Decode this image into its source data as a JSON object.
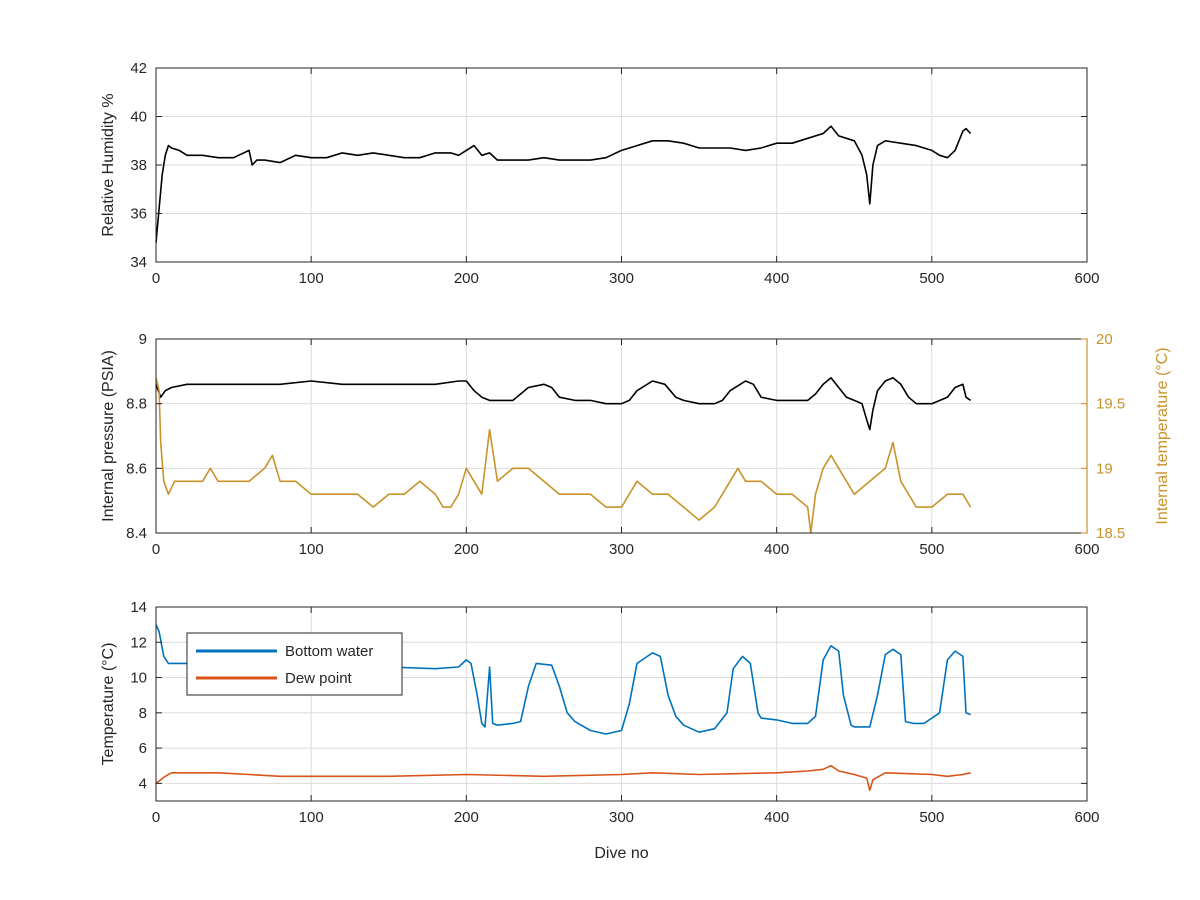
{
  "chart_data": [
    {
      "type": "line",
      "xlabel": "",
      "ylabel": "Relative Humidity %",
      "xlim": [
        0,
        600
      ],
      "ylim": [
        34,
        42
      ],
      "xticks": [
        0,
        100,
        200,
        300,
        400,
        500,
        600
      ],
      "yticks": [
        34,
        36,
        38,
        40,
        42
      ],
      "grid": true,
      "series": [
        {
          "color": "#000000",
          "x": [
            0,
            2,
            4,
            6,
            8,
            10,
            15,
            20,
            30,
            40,
            50,
            60,
            62,
            65,
            70,
            80,
            90,
            100,
            110,
            120,
            130,
            140,
            150,
            160,
            170,
            180,
            190,
            195,
            200,
            205,
            210,
            215,
            220,
            230,
            240,
            250,
            260,
            270,
            280,
            290,
            300,
            310,
            320,
            330,
            340,
            350,
            360,
            370,
            380,
            390,
            400,
            410,
            420,
            430,
            435,
            440,
            450,
            455,
            458,
            460,
            462,
            465,
            470,
            480,
            490,
            500,
            505,
            510,
            515,
            520,
            522,
            525
          ],
          "y": [
            34.8,
            36.2,
            37.6,
            38.4,
            38.8,
            38.7,
            38.6,
            38.4,
            38.4,
            38.3,
            38.3,
            38.6,
            38.0,
            38.2,
            38.2,
            38.1,
            38.4,
            38.3,
            38.3,
            38.5,
            38.4,
            38.5,
            38.4,
            38.3,
            38.3,
            38.5,
            38.5,
            38.4,
            38.6,
            38.8,
            38.4,
            38.5,
            38.2,
            38.2,
            38.2,
            38.3,
            38.2,
            38.2,
            38.2,
            38.3,
            38.6,
            38.8,
            39.0,
            39.0,
            38.9,
            38.7,
            38.7,
            38.7,
            38.6,
            38.7,
            38.9,
            38.9,
            39.1,
            39.3,
            39.6,
            39.2,
            39.0,
            38.4,
            37.6,
            36.4,
            38.0,
            38.8,
            39.0,
            38.9,
            38.8,
            38.6,
            38.4,
            38.3,
            38.6,
            39.4,
            39.5,
            39.3
          ]
        }
      ]
    },
    {
      "type": "line",
      "xlabel": "",
      "ylabel": "Internal pressure (PSIA)",
      "y2label": "Internal temperature (°C)",
      "xlim": [
        0,
        600
      ],
      "ylim": [
        8.4,
        9
      ],
      "y2lim": [
        18.5,
        20
      ],
      "xticks": [
        0,
        100,
        200,
        300,
        400,
        500,
        600
      ],
      "yticks": [
        8.4,
        8.6,
        8.8,
        9
      ],
      "y2ticks": [
        18.5,
        19,
        19.5,
        20
      ],
      "y2color": "#c9932a",
      "grid": true,
      "series": [
        {
          "axis": "left",
          "color": "#000000",
          "x": [
            0,
            3,
            6,
            10,
            20,
            40,
            60,
            80,
            100,
            120,
            140,
            160,
            180,
            195,
            200,
            205,
            210,
            215,
            220,
            230,
            235,
            240,
            250,
            255,
            260,
            270,
            280,
            290,
            300,
            305,
            310,
            320,
            328,
            335,
            340,
            350,
            360,
            365,
            370,
            380,
            385,
            390,
            400,
            410,
            420,
            425,
            430,
            435,
            440,
            445,
            450,
            455,
            458,
            460,
            462,
            465,
            470,
            475,
            480,
            485,
            490,
            495,
            500,
            510,
            515,
            520,
            522,
            525
          ],
          "y": [
            8.86,
            8.82,
            8.84,
            8.85,
            8.86,
            8.86,
            8.86,
            8.86,
            8.87,
            8.86,
            8.86,
            8.86,
            8.86,
            8.87,
            8.87,
            8.84,
            8.82,
            8.81,
            8.81,
            8.81,
            8.83,
            8.85,
            8.86,
            8.85,
            8.82,
            8.81,
            8.81,
            8.8,
            8.8,
            8.81,
            8.84,
            8.87,
            8.86,
            8.82,
            8.81,
            8.8,
            8.8,
            8.81,
            8.84,
            8.87,
            8.86,
            8.82,
            8.81,
            8.81,
            8.81,
            8.83,
            8.86,
            8.88,
            8.85,
            8.82,
            8.81,
            8.8,
            8.75,
            8.72,
            8.78,
            8.84,
            8.87,
            8.88,
            8.86,
            8.82,
            8.8,
            8.8,
            8.8,
            8.82,
            8.85,
            8.86,
            8.82,
            8.81
          ]
        },
        {
          "axis": "right",
          "color": "#c9932a",
          "x": [
            0,
            2,
            3,
            5,
            8,
            12,
            20,
            30,
            35,
            40,
            50,
            60,
            70,
            75,
            80,
            90,
            100,
            110,
            120,
            130,
            140,
            150,
            160,
            170,
            180,
            185,
            190,
            195,
            200,
            205,
            210,
            215,
            220,
            230,
            240,
            250,
            260,
            270,
            280,
            290,
            300,
            305,
            310,
            320,
            330,
            340,
            350,
            360,
            370,
            375,
            380,
            390,
            400,
            410,
            420,
            422,
            425,
            430,
            435,
            440,
            450,
            460,
            470,
            475,
            480,
            490,
            500,
            510,
            520,
            525
          ],
          "y": [
            19.7,
            19.6,
            19.2,
            18.9,
            18.8,
            18.9,
            18.9,
            18.9,
            19.0,
            18.9,
            18.9,
            18.9,
            19.0,
            19.1,
            18.9,
            18.9,
            18.8,
            18.8,
            18.8,
            18.8,
            18.7,
            18.8,
            18.8,
            18.9,
            18.8,
            18.7,
            18.7,
            18.8,
            19.0,
            18.9,
            18.8,
            19.3,
            18.9,
            19.0,
            19.0,
            18.9,
            18.8,
            18.8,
            18.8,
            18.7,
            18.7,
            18.8,
            18.9,
            18.8,
            18.8,
            18.7,
            18.6,
            18.7,
            18.9,
            19.0,
            18.9,
            18.9,
            18.8,
            18.8,
            18.7,
            18.5,
            18.8,
            19.0,
            19.1,
            19.0,
            18.8,
            18.9,
            19.0,
            19.2,
            18.9,
            18.7,
            18.7,
            18.8,
            18.8,
            18.7
          ]
        }
      ]
    },
    {
      "type": "line",
      "xlabel": "Dive no",
      "ylabel": "Temperature (°C)",
      "xlim": [
        0,
        600
      ],
      "ylim": [
        3,
        14
      ],
      "xticks": [
        0,
        100,
        200,
        300,
        400,
        500,
        600
      ],
      "yticks": [
        4,
        6,
        8,
        10,
        12,
        14
      ],
      "grid": true,
      "legend": "top-left",
      "series": [
        {
          "name": "Bottom water",
          "color": "#0072bd",
          "x": [
            0,
            2,
            5,
            8,
            20,
            50,
            100,
            150,
            180,
            195,
            200,
            203,
            207,
            210,
            212,
            215,
            217,
            220,
            230,
            235,
            240,
            245,
            255,
            260,
            265,
            270,
            280,
            290,
            300,
            305,
            310,
            320,
            325,
            330,
            335,
            340,
            350,
            360,
            368,
            372,
            378,
            383,
            388,
            390,
            400,
            410,
            420,
            425,
            430,
            435,
            440,
            443,
            448,
            450,
            460,
            465,
            470,
            475,
            480,
            483,
            488,
            495,
            505,
            510,
            515,
            520,
            522,
            525
          ],
          "y": [
            13.0,
            12.6,
            11.2,
            10.8,
            10.8,
            10.8,
            10.7,
            10.6,
            10.5,
            10.6,
            11.0,
            10.8,
            9.0,
            7.4,
            7.2,
            10.6,
            7.4,
            7.3,
            7.4,
            7.5,
            9.5,
            10.8,
            10.7,
            9.5,
            8.0,
            7.5,
            7.0,
            6.8,
            7.0,
            8.5,
            10.8,
            11.4,
            11.2,
            9.0,
            7.8,
            7.3,
            6.9,
            7.1,
            8.0,
            10.5,
            11.2,
            10.8,
            8.0,
            7.7,
            7.6,
            7.4,
            7.4,
            7.8,
            11.0,
            11.8,
            11.5,
            9.0,
            7.3,
            7.2,
            7.2,
            9.0,
            11.3,
            11.6,
            11.3,
            7.5,
            7.4,
            7.4,
            8.0,
            11.0,
            11.5,
            11.2,
            8.0,
            7.9
          ]
        },
        {
          "name": "Dew point",
          "color": "#d95319",
          "x": [
            0,
            3,
            6,
            10,
            20,
            40,
            60,
            80,
            100,
            150,
            200,
            250,
            300,
            320,
            350,
            400,
            420,
            430,
            435,
            440,
            450,
            458,
            460,
            462,
            470,
            500,
            510,
            520,
            525
          ],
          "y": [
            4.0,
            4.2,
            4.4,
            4.6,
            4.6,
            4.6,
            4.5,
            4.4,
            4.4,
            4.4,
            4.5,
            4.4,
            4.5,
            4.6,
            4.5,
            4.6,
            4.7,
            4.8,
            5.0,
            4.7,
            4.5,
            4.3,
            3.6,
            4.2,
            4.6,
            4.5,
            4.4,
            4.5,
            4.6
          ]
        }
      ]
    }
  ]
}
